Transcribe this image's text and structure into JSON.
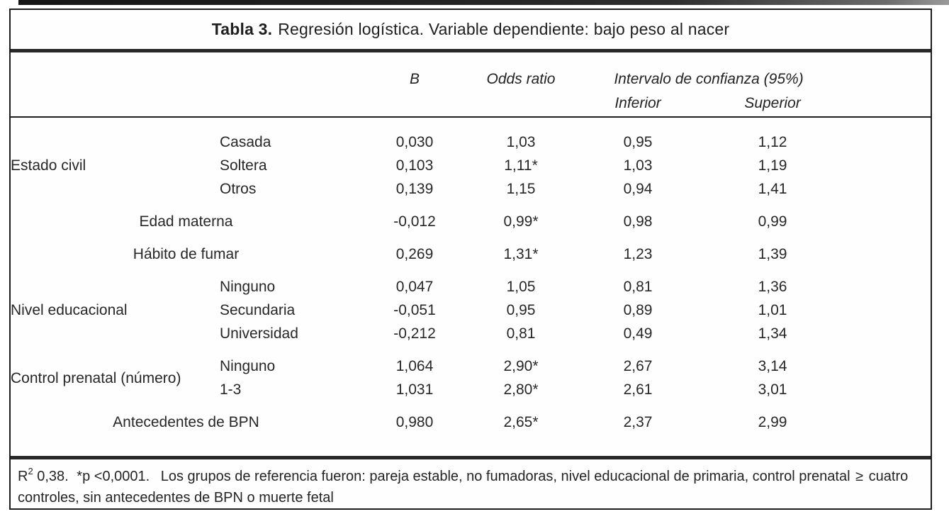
{
  "document": {
    "title": {
      "prefix": "Tabla 3.",
      "text": "Regresión logística. Variable dependiente: bajo peso al nacer"
    }
  },
  "table": {
    "columns": {
      "b": "B",
      "odds_ratio": "Odds ratio",
      "ci": "Intervalo de confianza (95%)",
      "ci_inferior": "Inferior",
      "ci_superior": "Superior"
    },
    "groups": [
      {
        "label": "Estado civil",
        "rows": [
          {
            "category": "Casada",
            "b": "0,030",
            "odds_ratio": "1,03",
            "ci_inferior": "0,95",
            "ci_superior": "1,12"
          },
          {
            "category": "Soltera",
            "b": "0,103",
            "odds_ratio": "1,11*",
            "ci_inferior": "1,03",
            "ci_superior": "1,19"
          },
          {
            "category": "Otros",
            "b": "0,139",
            "odds_ratio": "1,15",
            "ci_inferior": "0,94",
            "ci_superior": "1,41"
          }
        ]
      },
      {
        "label": "Edad materna",
        "centered": true,
        "rows": [
          {
            "category": "",
            "b": "-0,012",
            "odds_ratio": "0,99*",
            "ci_inferior": "0,98",
            "ci_superior": "0,99"
          }
        ]
      },
      {
        "label": "Hábito de fumar",
        "centered": true,
        "rows": [
          {
            "category": "",
            "b": "0,269",
            "odds_ratio": "1,31*",
            "ci_inferior": "1,23",
            "ci_superior": "1,39"
          }
        ]
      },
      {
        "label": "Nivel educacional",
        "rows": [
          {
            "category": "Ninguno",
            "b": "0,047",
            "odds_ratio": "1,05",
            "ci_inferior": "0,81",
            "ci_superior": "1,36"
          },
          {
            "category": "Secundaria",
            "b": "-0,051",
            "odds_ratio": "0,95",
            "ci_inferior": "0,89",
            "ci_superior": "1,01"
          },
          {
            "category": "Universidad",
            "b": "-0,212",
            "odds_ratio": "0,81",
            "ci_inferior": "0,49",
            "ci_superior": "1,34"
          }
        ]
      },
      {
        "label": "Control prenatal (número)",
        "rows": [
          {
            "category": "Ninguno",
            "b": "1,064",
            "odds_ratio": "2,90*",
            "ci_inferior": "2,67",
            "ci_superior": "3,14"
          },
          {
            "category": "1-3",
            "b": "1,031",
            "odds_ratio": "2,80*",
            "ci_inferior": "2,61",
            "ci_superior": "3,01"
          }
        ]
      },
      {
        "label": "Antecedentes de BPN",
        "centered": true,
        "rows": [
          {
            "category": "",
            "b": "0,980",
            "odds_ratio": "2,65*",
            "ci_inferior": "2,37",
            "ci_superior": "2,99"
          }
        ]
      }
    ]
  },
  "footnote": {
    "r2_base": "R",
    "r2_exponent": "2",
    "r2_value": "0,38.",
    "significance": "*p <0,0001.",
    "reference_intro": "Los grupos de referencia fueron: pareja estable, no fumadoras, nivel educacional de primaria, control prenatal",
    "gte_symbol": "≥",
    "reference_rest": "cuatro controles, sin antecedentes de BPN o muerte fetal"
  }
}
